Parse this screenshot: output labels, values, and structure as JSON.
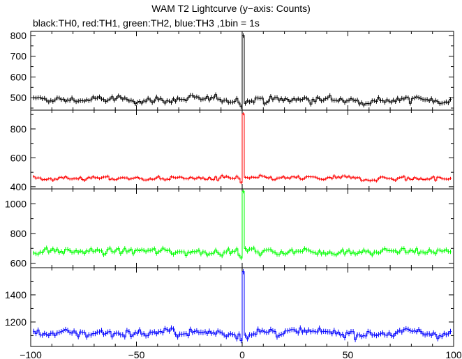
{
  "title": "WAM T2 Lightcurve (y−axis: Counts)",
  "subtitle": "black:TH0, red:TH1, green:TH2, blue:TH3 ,1bin = 1s",
  "chart_data": {
    "type": "line",
    "title": "WAM T2 Lightcurve (y−axis: Counts)",
    "xlabel": "",
    "ylabel": "",
    "x_range": [
      -100,
      100
    ],
    "x_ticks": [
      -100,
      -50,
      0,
      50,
      100
    ],
    "x_tick_labels": [
      "−100",
      "−50",
      "0",
      "50",
      "100"
    ],
    "bin_width_s": 1,
    "grid": false,
    "panels": [
      {
        "series": "TH0",
        "color": "#000000",
        "ylim": [
          440,
          820
        ],
        "y_ticks": [
          500,
          600,
          700,
          800
        ],
        "y_tick_labels": [
          "500",
          "600",
          "700",
          "800"
        ],
        "baseline": 490,
        "noise": 22,
        "peak": 800
      },
      {
        "series": "TH1",
        "color": "#ff0000",
        "ylim": [
          385,
          930
        ],
        "y_ticks": [
          400,
          600,
          800
        ],
        "y_tick_labels": [
          "400",
          "600",
          "800"
        ],
        "baseline": 458,
        "noise": 20,
        "peak": 905
      },
      {
        "series": "TH2",
        "color": "#00ff00",
        "ylim": [
          570,
          1100
        ],
        "y_ticks": [
          600,
          800,
          1000
        ],
        "y_tick_labels": [
          "600",
          "800",
          "1000"
        ],
        "baseline": 680,
        "noise": 30,
        "peak": 1085
      },
      {
        "series": "TH3",
        "color": "#0000ff",
        "ylim": [
          1020,
          1600
        ],
        "y_ticks": [
          1200,
          1400
        ],
        "y_tick_labels": [
          "1200",
          "1400"
        ],
        "baseline": 1120,
        "noise": 38,
        "peak": 1570
      }
    ]
  }
}
